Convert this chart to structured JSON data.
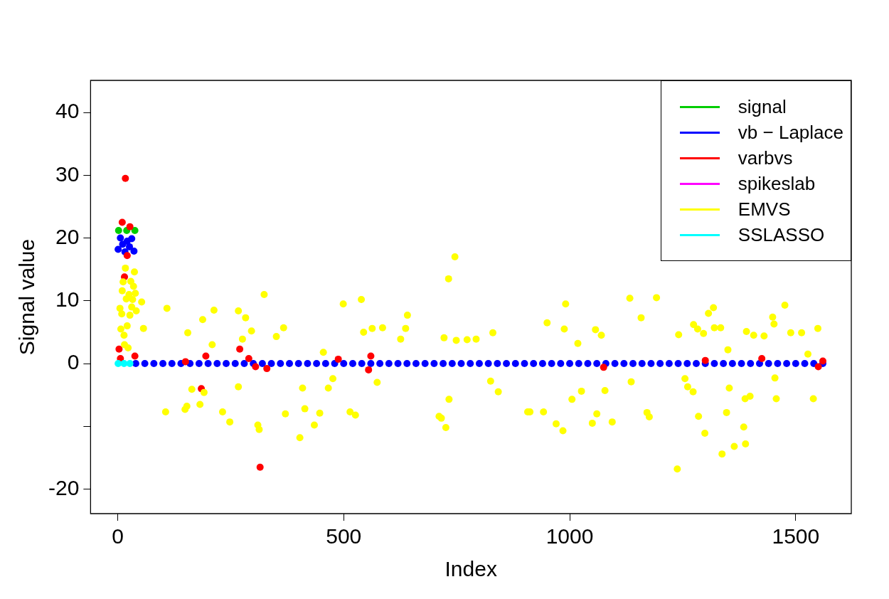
{
  "chart_data": {
    "type": "scatter",
    "xlabel": "Index",
    "ylabel": "Signal value",
    "xlim": [
      -60,
      1623
    ],
    "ylim": [
      -23.9,
      45.1
    ],
    "xticks": [
      0,
      500,
      1000,
      1500
    ],
    "yticks": [
      -20,
      {
        "value": -10,
        "label": null
      },
      0,
      10,
      20,
      30,
      40
    ],
    "grid": false,
    "legend": "top right",
    "marker": "circle",
    "series": [
      {
        "name": "signal",
        "color": "#00cd00",
        "x": [
          2,
          20,
          38
        ],
        "values": [
          21.2,
          21.2,
          21.2
        ]
      },
      {
        "name": "vb − Laplace",
        "color": "#0000ff",
        "x": [
          1,
          6,
          11,
          16,
          21,
          26,
          31,
          36,
          40,
          60,
          80,
          100,
          120,
          140,
          160,
          180,
          200,
          220,
          240,
          260,
          280,
          300,
          320,
          340,
          360,
          380,
          400,
          420,
          440,
          460,
          480,
          500,
          520,
          540,
          560,
          580,
          600,
          620,
          640,
          660,
          680,
          700,
          720,
          740,
          760,
          780,
          800,
          820,
          840,
          860,
          880,
          900,
          920,
          940,
          960,
          980,
          1000,
          1020,
          1040,
          1060,
          1080,
          1100,
          1120,
          1140,
          1160,
          1180,
          1200,
          1220,
          1240,
          1260,
          1280,
          1300,
          1320,
          1340,
          1360,
          1380,
          1400,
          1420,
          1440,
          1460,
          1480,
          1500,
          1520,
          1540,
          1560
        ],
        "values": [
          18.2,
          20.0,
          19.0,
          17.8,
          19.5,
          18.6,
          19.9,
          17.9,
          0,
          0,
          0,
          0,
          0,
          0,
          0,
          0,
          0,
          0,
          0,
          0,
          0,
          0,
          0,
          0,
          0,
          0,
          0,
          0,
          0,
          0,
          0,
          0,
          0,
          0,
          0,
          0,
          0,
          0,
          0,
          0,
          0,
          0,
          0,
          0,
          0,
          0,
          0,
          0,
          0,
          0,
          0,
          0,
          0,
          0,
          0,
          0,
          0,
          0,
          0,
          0,
          0,
          0,
          0,
          0,
          0,
          0,
          0,
          0,
          0,
          0,
          0,
          0,
          0,
          0,
          0,
          0,
          0,
          0,
          0,
          0,
          0,
          0,
          0,
          0,
          0
        ]
      },
      {
        "name": "varbvs",
        "color": "#ff0000",
        "x": [
          3,
          6,
          10,
          15,
          17,
          19,
          21,
          27,
          37,
          38,
          150,
          185,
          195,
          270,
          290,
          305,
          315,
          330,
          488,
          555,
          560,
          1075,
          1300,
          1425,
          1550,
          1560
        ],
        "values": [
          2.3,
          0.8,
          22.5,
          13.8,
          29.5,
          null,
          17.2,
          21.8,
          null,
          1.2,
          0.3,
          -4.0,
          1.2,
          2.3,
          0.8,
          -0.5,
          -16.5,
          -0.8,
          0.7,
          -1.0,
          1.2,
          -0.6,
          0.5,
          0.8,
          -0.5,
          0.4
        ]
      },
      {
        "name": "spikeslab",
        "color": "#ff00ff"
      },
      {
        "name": "EMVS",
        "color": "#ffff00",
        "x": [
          5,
          7,
          9,
          10,
          12,
          14,
          15,
          17,
          19,
          21,
          23,
          25,
          27,
          29,
          31,
          33,
          35,
          37,
          39,
          41,
          53,
          57,
          106,
          109,
          149,
          153,
          155,
          164,
          182,
          188,
          191,
          209,
          213,
          232,
          248,
          267,
          267,
          276,
          283,
          296,
          310,
          313,
          324,
          351,
          367,
          371,
          403,
          409,
          414,
          435,
          447,
          455,
          466,
          476,
          499,
          514,
          526,
          539,
          544,
          563,
          574,
          586,
          626,
          637,
          641,
          711,
          716,
          722,
          726,
          732,
          733,
          746,
          749,
          773,
          793,
          825,
          830,
          842,
          907,
          912,
          942,
          950,
          970,
          985,
          988,
          991,
          1005,
          1018,
          1026,
          1050,
          1057,
          1060,
          1070,
          1078,
          1094,
          1133,
          1136,
          1158,
          1171,
          1176,
          1192,
          1238,
          1241,
          1255,
          1261,
          1273,
          1274,
          1283,
          1285,
          1296,
          1299,
          1307,
          1318,
          1320,
          1334,
          1337,
          1347,
          1350,
          1353,
          1364,
          1385,
          1388,
          1389,
          1391,
          1399,
          1407,
          1430,
          1449,
          1452,
          1454,
          1457,
          1476,
          1489,
          1513,
          1527,
          1539,
          1549
        ],
        "values": [
          8.8,
          5.5,
          7.9,
          11.6,
          13.0,
          4.5,
          3.0,
          15.2,
          10.3,
          6.0,
          2.5,
          11.0,
          7.7,
          13.1,
          9.0,
          10.2,
          12.3,
          14.6,
          11.2,
          8.4,
          9.8,
          5.6,
          -7.7,
          8.8,
          -7.3,
          -6.8,
          4.9,
          -4.1,
          -6.5,
          7.0,
          -4.6,
          3.0,
          8.5,
          -7.7,
          -9.3,
          -3.7,
          8.4,
          3.9,
          7.3,
          5.2,
          -9.8,
          -10.5,
          11.0,
          4.3,
          5.7,
          -8.0,
          -11.8,
          -3.9,
          -7.2,
          -9.8,
          -7.9,
          1.8,
          -3.9,
          -2.4,
          9.5,
          -7.7,
          -8.2,
          10.2,
          5.0,
          5.6,
          -3.0,
          5.7,
          3.9,
          5.6,
          7.7,
          -8.4,
          -8.7,
          4.1,
          -10.2,
          13.5,
          -5.7,
          17.0,
          3.7,
          3.8,
          3.9,
          -2.8,
          4.9,
          -4.5,
          -7.7,
          -7.7,
          -7.7,
          6.5,
          -9.6,
          -10.7,
          5.5,
          9.5,
          -5.7,
          3.2,
          -4.4,
          -9.5,
          5.4,
          -8.0,
          4.5,
          -4.3,
          -9.3,
          10.4,
          -2.9,
          7.3,
          -7.8,
          -8.5,
          10.5,
          -16.8,
          4.6,
          -2.4,
          -3.7,
          -4.5,
          6.2,
          5.5,
          -8.4,
          4.8,
          -11.1,
          8.0,
          8.9,
          5.7,
          5.7,
          -14.4,
          -7.8,
          2.2,
          -3.9,
          -13.2,
          -10.1,
          -5.6,
          -12.8,
          5.1,
          -5.2,
          4.5,
          4.4,
          7.4,
          6.3,
          -2.3,
          -5.6,
          9.3,
          4.9,
          4.9,
          1.5,
          -5.6,
          5.6
        ]
      },
      {
        "name": "SSLASSO",
        "color": "#00ffff",
        "x": [
          1,
          14,
          27
        ],
        "values": [
          0,
          0,
          0
        ]
      }
    ]
  }
}
